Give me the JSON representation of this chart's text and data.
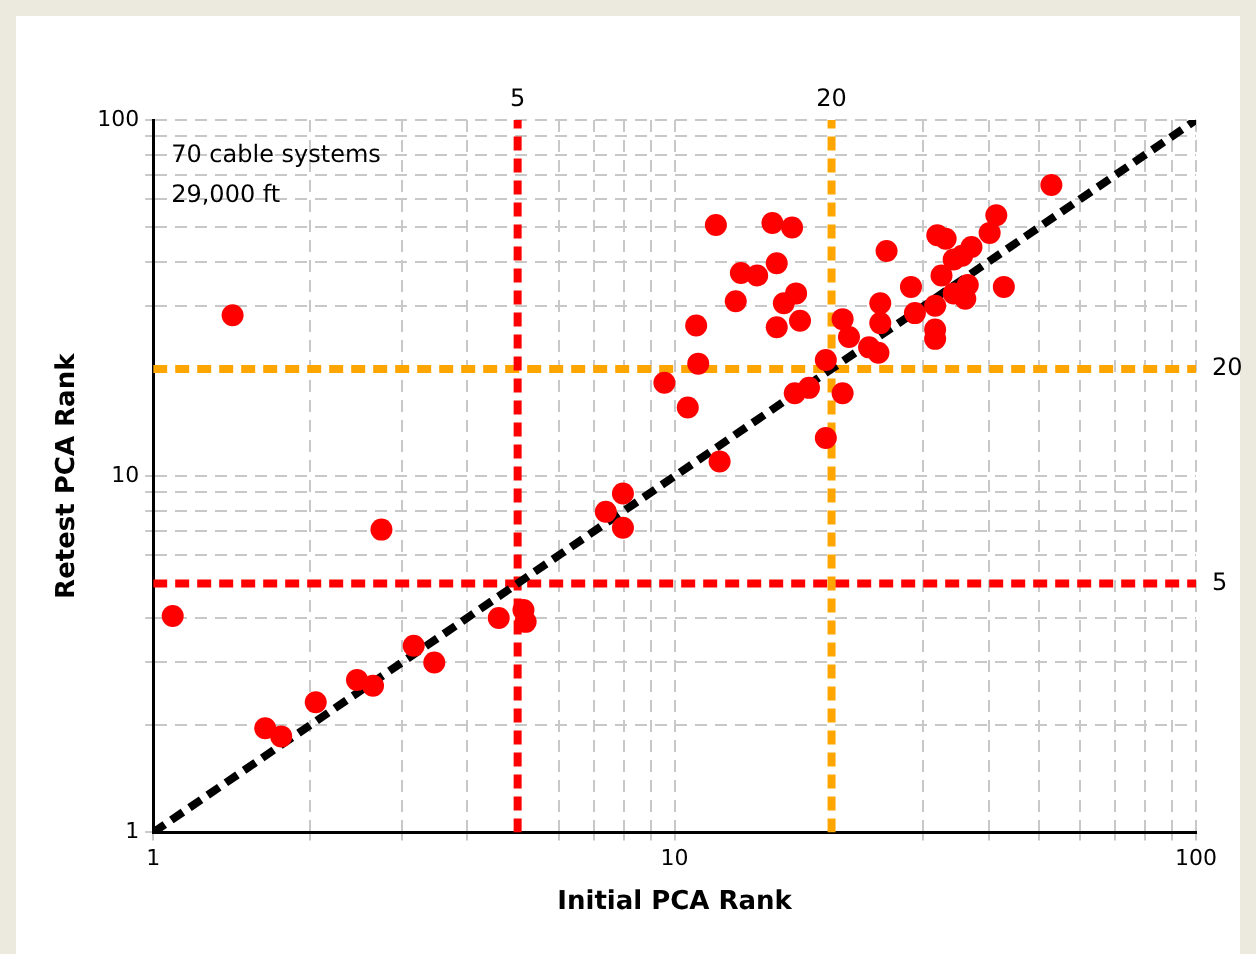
{
  "chart_data": {
    "type": "scatter",
    "xlabel": "Initial PCA Rank",
    "ylabel": "Retest PCA Rank",
    "log": "xy",
    "grid": true,
    "legend": false,
    "xlim": [
      1,
      100
    ],
    "ylim": [
      1,
      100
    ],
    "xticks": [
      1,
      {
        "value": 2,
        "label": null
      },
      {
        "value": 3,
        "label": null
      },
      {
        "value": 4,
        "label": null
      },
      {
        "value": 6,
        "label": null
      },
      {
        "value": 7,
        "label": null
      },
      {
        "value": 8,
        "label": null
      },
      {
        "value": 9,
        "label": null
      },
      10,
      {
        "value": 30,
        "label": null
      },
      {
        "value": 40,
        "label": null
      },
      {
        "value": 50,
        "label": null
      },
      {
        "value": 60,
        "label": null
      },
      {
        "value": 70,
        "label": null
      },
      {
        "value": 80,
        "label": null
      },
      {
        "value": 90,
        "label": null
      },
      100
    ],
    "yticks": [
      1,
      {
        "value": 2,
        "label": null
      },
      {
        "value": 3,
        "label": null
      },
      {
        "value": 4,
        "label": null
      },
      {
        "value": 6,
        "label": null
      },
      {
        "value": 7,
        "label": null
      },
      {
        "value": 8,
        "label": null
      },
      {
        "value": 9,
        "label": null
      },
      10,
      {
        "value": 30,
        "label": null
      },
      {
        "value": 40,
        "label": null
      },
      {
        "value": 50,
        "label": null
      },
      {
        "value": 60,
        "label": null
      },
      {
        "value": 70,
        "label": null
      },
      {
        "value": 80,
        "label": null
      },
      {
        "value": 90,
        "label": null
      },
      100
    ],
    "annotations": [
      "70 cable systems",
      "29,000 ft"
    ],
    "ref_lines": [
      {
        "axis": "x",
        "value": 5,
        "label": "5",
        "color": "#ff0000",
        "line_style": "dashed"
      },
      {
        "axis": "x",
        "value": 20,
        "label": "20",
        "color": "#ffa500",
        "line_style": "dashed"
      },
      {
        "axis": "y",
        "value": 5,
        "label": "5",
        "color": "#ff0000",
        "line_style": "dashed"
      },
      {
        "axis": "y",
        "value": 20,
        "label": "20",
        "color": "#ffa500",
        "line_style": "dashed"
      }
    ],
    "series": [
      {
        "type": "scatter",
        "color": "#ff0000",
        "marker": "circle",
        "x": [
          1.09,
          1.42,
          1.64,
          1.76,
          2.05,
          2.46,
          2.64,
          2.74,
          3.16,
          3.46,
          4.6,
          5.13,
          5.18,
          7.38,
          7.96,
          7.96,
          12.2,
          10.6,
          9.56,
          11.1,
          11.0,
          19.5,
          21.0,
          17.0,
          18.1,
          19.5,
          12.0,
          15.4,
          16.8,
          13.4,
          14.4,
          15.7,
          13.1,
          16.2,
          17.1,
          15.7,
          17.4,
          21.0,
          21.6,
          23.6,
          24.6,
          24.8,
          24.8,
          25.5,
          28.4,
          28.9,
          31.6,
          31.6,
          31.6,
          31.9,
          33.1,
          32.5,
          34.3,
          35.6,
          37.1,
          34.3,
          36.1,
          36.5,
          40.2,
          41.4,
          42.8,
          52.8
        ],
        "values": [
          4.05,
          28.3,
          1.96,
          1.86,
          2.32,
          2.68,
          2.58,
          7.08,
          3.34,
          3.0,
          4.0,
          4.21,
          3.9,
          7.95,
          8.94,
          7.17,
          11.0,
          15.6,
          18.3,
          20.7,
          26.5,
          12.8,
          17.1,
          17.1,
          17.7,
          21.2,
          50.7,
          51.4,
          49.9,
          37.2,
          36.6,
          39.6,
          31.0,
          30.6,
          32.6,
          26.2,
          27.3,
          27.6,
          24.6,
          23.0,
          22.2,
          26.9,
          30.6,
          42.9,
          34.0,
          28.7,
          30.1,
          25.8,
          24.3,
          47.5,
          46.4,
          36.6,
          40.6,
          41.6,
          44.0,
          32.6,
          31.5,
          34.4,
          48.2,
          54.0,
          34.0,
          65.7
        ]
      },
      {
        "type": "line",
        "color": "#000000",
        "marker": "none",
        "line_style": "dashed",
        "x": [
          1,
          100
        ],
        "values": [
          1,
          100
        ]
      }
    ]
  }
}
